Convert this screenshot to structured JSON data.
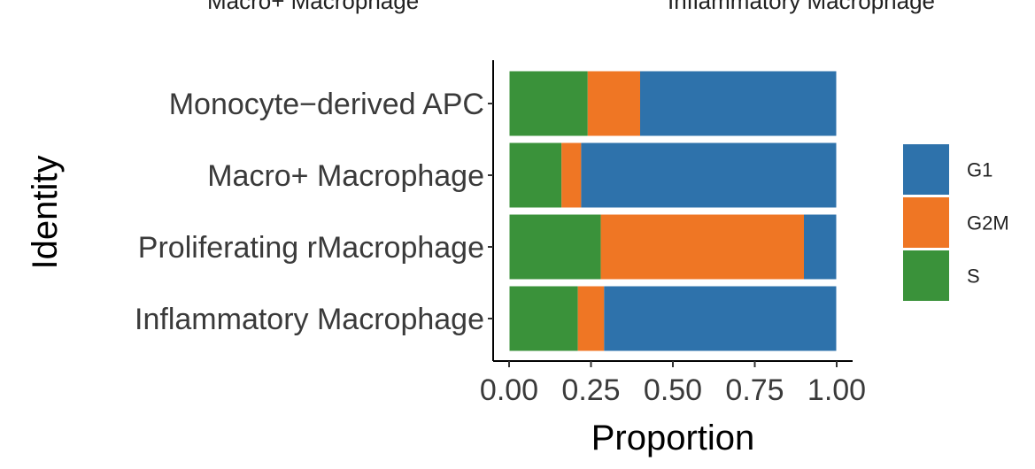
{
  "header": {
    "left_cut_label": "Macro+ Macrophage",
    "right_cut_label": "Inflammatory Macrophage"
  },
  "chart_data": {
    "type": "bar",
    "orientation": "horizontal",
    "stacked": true,
    "categories": [
      "Monocyte−derived APC",
      "Macro+ Macrophage",
      "Proliferating rMacrophage",
      "Inflammatory Macrophage"
    ],
    "series": [
      {
        "name": "S",
        "color": "#3a923a",
        "values": [
          0.24,
          0.16,
          0.28,
          0.21
        ]
      },
      {
        "name": "G2M",
        "color": "#ef7624",
        "values": [
          0.16,
          0.06,
          0.62,
          0.08
        ]
      },
      {
        "name": "G1",
        "color": "#2e72ab",
        "values": [
          0.6,
          0.78,
          0.1,
          0.71
        ]
      }
    ],
    "legend_order": [
      "G1",
      "G2M",
      "S"
    ],
    "legend_position": "right",
    "xlabel": "Proportion",
    "ylabel": "Identity",
    "xticks": [
      "0.00",
      "0.25",
      "0.50",
      "0.75",
      "1.00"
    ],
    "xlim": [
      0,
      1
    ],
    "grid": false
  }
}
